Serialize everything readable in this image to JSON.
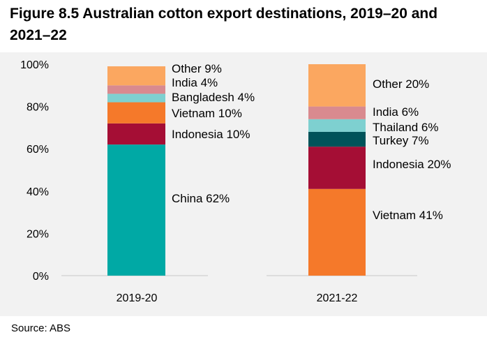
{
  "title": "Figure 8.5 Australian cotton export destinations, 2019–20 and 2021–22",
  "source": "Source: ABS",
  "chart_data": {
    "type": "bar",
    "stacked": true,
    "categories": [
      "2019-20",
      "2021-22"
    ],
    "y_ticks": [
      "0%",
      "20%",
      "40%",
      "60%",
      "80%",
      "100%"
    ],
    "ylim": [
      0,
      100
    ],
    "grid": false,
    "legend": "none",
    "series": [
      {
        "category": "2019-20",
        "segments": [
          {
            "label": "China 62%",
            "value": 62,
            "color": "#00a9a5"
          },
          {
            "label": "Indonesia 10%",
            "value": 10,
            "color": "#a50e35"
          },
          {
            "label": "Vietnam 10%",
            "value": 10,
            "color": "#f5792a"
          },
          {
            "label": "Bangladesh 4%",
            "value": 4,
            "color": "#7ed0d0"
          },
          {
            "label": "India 4%",
            "value": 4,
            "color": "#d98a8f"
          },
          {
            "label": "Other 9%",
            "value": 9,
            "color": "#fba760"
          }
        ]
      },
      {
        "category": "2021-22",
        "segments": [
          {
            "label": "Vietnam 41%",
            "value": 41,
            "color": "#f5792a"
          },
          {
            "label": "Indonesia 20%",
            "value": 20,
            "color": "#a50e35"
          },
          {
            "label": "Turkey 7%",
            "value": 7,
            "color": "#00535a"
          },
          {
            "label": "Thailand 6%",
            "value": 6,
            "color": "#7ed0d0"
          },
          {
            "label": "India 6%",
            "value": 6,
            "color": "#d98a8f"
          },
          {
            "label": "Other 20%",
            "value": 20,
            "color": "#fba760"
          }
        ]
      }
    ]
  }
}
